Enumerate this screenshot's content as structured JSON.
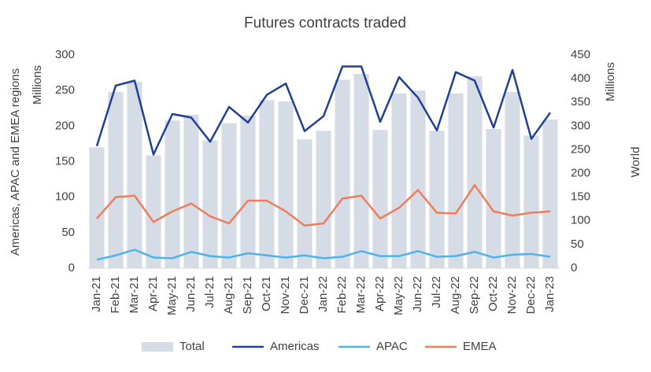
{
  "chart_data": {
    "type": "bar",
    "title": "Futures contracts traded",
    "y_label": "Americas, APAC and EMEA regions",
    "y_unit": "Millions",
    "y2_label": "World",
    "y2_unit": "Millions",
    "categories": [
      "Jan-21",
      "Feb-21",
      "Mar-21",
      "Apr-21",
      "May-21",
      "Jun-21",
      "Jul-21",
      "Aug-21",
      "Sep-21",
      "Oct-21",
      "Nov-21",
      "Dec-21",
      "Jan-22",
      "Feb-22",
      "Mar-22",
      "Apr-22",
      "May-22",
      "Jun-22",
      "Jul-22",
      "Aug-22",
      "Sep-22",
      "Oct-22",
      "Nov-22",
      "Dec-22",
      "Jan-23"
    ],
    "series": [
      {
        "name": "Total",
        "type": "bar",
        "axis": "y2",
        "color": "#d6dce5",
        "values": [
          255,
          372,
          393,
          238,
          312,
          324,
          270,
          306,
          322,
          355,
          352,
          272,
          290,
          398,
          410,
          292,
          369,
          375,
          290,
          369,
          405,
          294,
          372,
          280,
          314
        ]
      },
      {
        "name": "Americas",
        "type": "line",
        "color": "#203f96",
        "values": [
          172,
          257,
          264,
          160,
          217,
          212,
          178,
          227,
          205,
          244,
          260,
          193,
          214,
          284,
          284,
          206,
          269,
          240,
          194,
          276,
          264,
          198,
          279,
          182,
          219
        ]
      },
      {
        "name": "APAC",
        "type": "line",
        "color": "#4db3ea",
        "values": [
          12,
          18,
          26,
          15,
          14,
          23,
          17,
          15,
          21,
          18,
          15,
          18,
          14,
          16,
          24,
          17,
          17,
          24,
          16,
          17,
          23,
          15,
          19,
          20,
          16
        ]
      },
      {
        "name": "EMEA",
        "type": "line",
        "color": "#ee7d5c",
        "values": [
          70,
          100,
          102,
          65,
          80,
          91,
          73,
          63,
          95,
          95,
          80,
          60,
          63,
          98,
          102,
          70,
          85,
          110,
          78,
          77,
          117,
          80,
          74,
          78,
          80
        ]
      }
    ],
    "ylim": [
      0,
      300
    ],
    "yticks": [
      0,
      50,
      100,
      150,
      200,
      250,
      300
    ],
    "y2lim": [
      0,
      450
    ],
    "y2ticks": [
      0,
      50,
      100,
      150,
      200,
      250,
      300,
      350,
      400,
      450
    ],
    "grid": false,
    "legend": "bottom"
  }
}
